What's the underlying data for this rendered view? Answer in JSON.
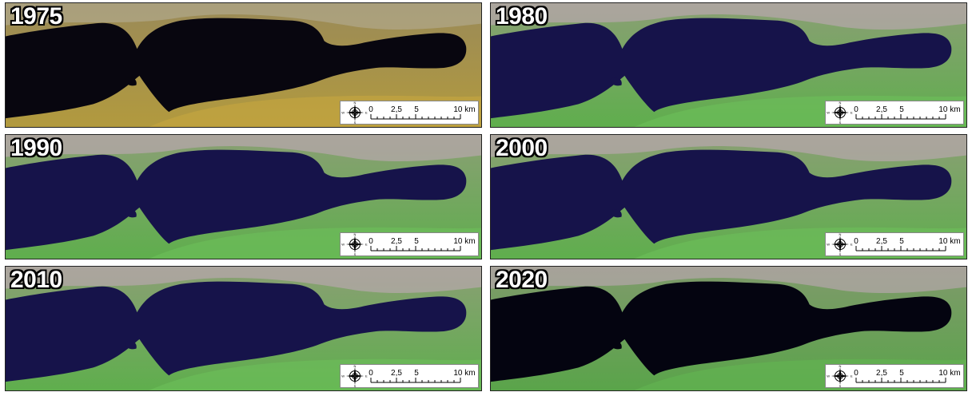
{
  "panels": [
    {
      "year": "1975",
      "style": "tan"
    },
    {
      "year": "1980",
      "style": "green"
    },
    {
      "year": "1990",
      "style": "green"
    },
    {
      "year": "2000",
      "style": "green"
    },
    {
      "year": "2010",
      "style": "green"
    },
    {
      "year": "2020",
      "style": "dark"
    }
  ],
  "scalebar": {
    "labels": [
      "0",
      "2,5",
      "5",
      "10 km"
    ]
  },
  "compass": {
    "letters": [
      "N",
      "E",
      "S",
      "W"
    ]
  },
  "colors": {
    "lake_tan": "#08060f",
    "lake_blue": "#16134a",
    "lake_dark": "#040410",
    "land_tan": "#8a7c4a",
    "land_green": "#6f9a5c",
    "urban": "#c6a9bf"
  }
}
